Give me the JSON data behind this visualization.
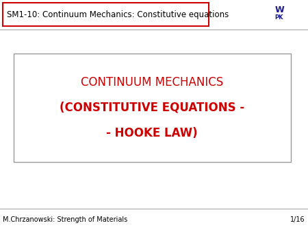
{
  "bg_color": "#ffffff",
  "header_text": "SM1-10: Continuum Mechanics: Constitutive equations",
  "header_box_color": "#cc0000",
  "header_text_color": "#000000",
  "header_fontsize": 8.5,
  "line1": "CONTINUUM MECHANICS",
  "line2": "(CONSTITUTIVE EQUATIONS -",
  "line3": "- HOOKE LAW)",
  "main_text_color": "#cc0000",
  "main_fontsize_line1": 12,
  "main_fontsize_bold": 12,
  "box_edge_color": "#999999",
  "footer_left": "M.Chrzanowski: Strength of Materials",
  "footer_right": "1/16",
  "footer_fontsize": 7,
  "footer_text_color": "#000000",
  "separator_color": "#aaaaaa",
  "logo_color": "#1a1a8c"
}
